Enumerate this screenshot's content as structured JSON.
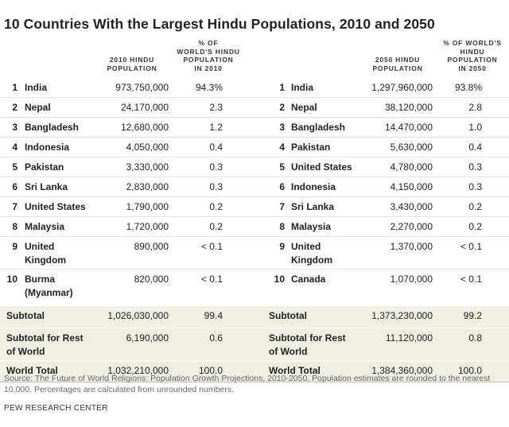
{
  "title": "10 Countries With the Largest Hindu Populations, 2010 and 2050",
  "headers": {
    "pop2010": [
      "2010 HINDU",
      "POPULATION"
    ],
    "pct2010": [
      "% OF",
      "WORLD'S HINDU",
      "POPULATION",
      "IN 2010"
    ],
    "pop2050": [
      "2050 HINDU",
      "POPULATION"
    ],
    "pct2050": [
      "% OF WORLD'S",
      "HINDU",
      "POPULATION",
      "IN 2050"
    ]
  },
  "rows": [
    {
      "rank": "1",
      "c2010": "India",
      "p2010": "973,750,000",
      "s2010": "94.3%",
      "rank2": "1",
      "c2050": "India",
      "p2050": "1,297,960,000",
      "s2050": "93.8%"
    },
    {
      "rank": "2",
      "c2010": "Nepal",
      "p2010": "24,170,000",
      "s2010": "2.3",
      "rank2": "2",
      "c2050": "Nepal",
      "p2050": "38,120,000",
      "s2050": "2.8"
    },
    {
      "rank": "3",
      "c2010": "Bangladesh",
      "p2010": "12,680,000",
      "s2010": "1.2",
      "rank2": "3",
      "c2050": "Bangladesh",
      "p2050": "14,470,000",
      "s2050": "1.0"
    },
    {
      "rank": "4",
      "c2010": "Indonesia",
      "p2010": "4,050,000",
      "s2010": "0.4",
      "rank2": "4",
      "c2050": "Pakistan",
      "p2050": "5,630,000",
      "s2050": "0.4"
    },
    {
      "rank": "5",
      "c2010": "Pakistan",
      "p2010": "3,330,000",
      "s2010": "0.3",
      "rank2": "5",
      "c2050": "United States",
      "p2050": "4,780,000",
      "s2050": "0.3"
    },
    {
      "rank": "6",
      "c2010": "Sri Lanka",
      "p2010": "2,830,000",
      "s2010": "0.3",
      "rank2": "6",
      "c2050": "Indonesia",
      "p2050": "4,150,000",
      "s2050": "0.3"
    },
    {
      "rank": "7",
      "c2010": "United States",
      "p2010": "1,790,000",
      "s2010": "0.2",
      "rank2": "7",
      "c2050": "Sri Lanka",
      "p2050": "3,430,000",
      "s2050": "0.2"
    },
    {
      "rank": "8",
      "c2010": "Malaysia",
      "p2010": "1,720,000",
      "s2010": "0.2",
      "rank2": "8",
      "c2050": "Malaysia",
      "p2050": "2,270,000",
      "s2050": "0.2"
    },
    {
      "rank": "9",
      "c2010": [
        "United",
        "Kingdom"
      ],
      "p2010": "890,000",
      "s2010": "< 0.1",
      "rank2": "9",
      "c2050": [
        "United",
        "Kingdom"
      ],
      "p2050": "1,370,000",
      "s2050": "< 0.1"
    },
    {
      "rank": "10",
      "c2010": [
        "Burma",
        "(Myanmar)"
      ],
      "p2010": "820,000",
      "s2010": "< 0.1",
      "rank2": "10",
      "c2050": "Canada",
      "p2050": "1,070,000",
      "s2050": "< 0.1"
    }
  ],
  "summary": [
    {
      "label2010": "Subtotal",
      "p2010": "1,026,030,000",
      "s2010": "99.4",
      "label2050": "Subtotal",
      "p2050": "1,373,230,000",
      "s2050": "99.2"
    },
    {
      "label2010": [
        "Subtotal for Rest",
        "of World"
      ],
      "p2010": "6,190,000",
      "s2010": "0.6",
      "label2050": [
        "Subtotal for Rest",
        "of World"
      ],
      "p2050": "11,120,000",
      "s2050": "0.8"
    },
    {
      "label2010": "World Total",
      "p2010": "1,032,210,000",
      "s2010": "100.0",
      "label2050": "World Total",
      "p2050": "1,384,360,000",
      "s2050": "100.0"
    }
  ],
  "source": "Source: The Future of World Religions: Population Growth Projections, 2010-2050. Population estimates are rounded to the nearest 10,000. Percentages are calculated from unrounded numbers.",
  "brand": "PEW RESEARCH CENTER",
  "colors": {
    "summary_bg": "#f1efe4",
    "text": "#222222",
    "source_text": "#666666"
  }
}
